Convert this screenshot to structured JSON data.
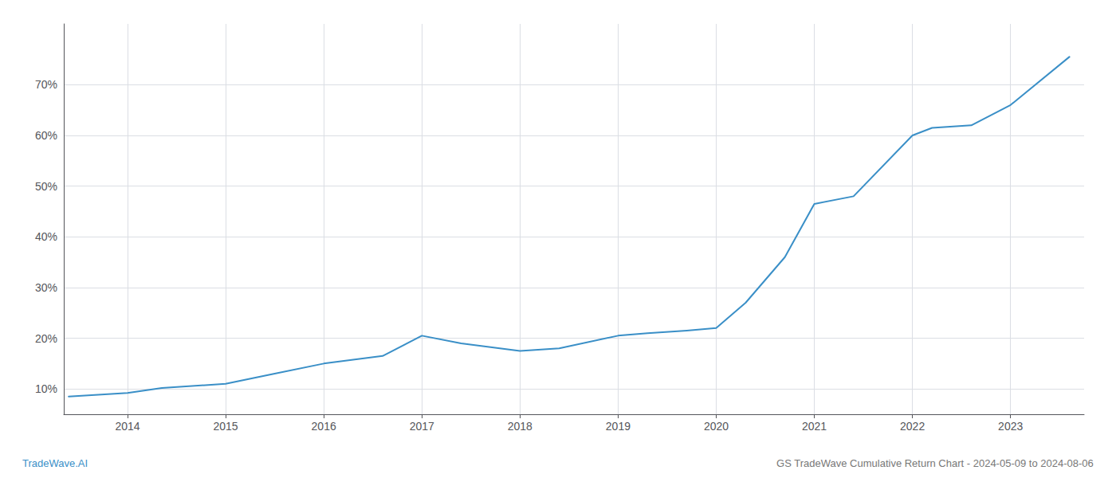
{
  "chart_data": {
    "type": "line",
    "x": [
      2013.4,
      2014.0,
      2014.35,
      2015.0,
      2015.5,
      2016.0,
      2016.6,
      2017.0,
      2017.4,
      2018.0,
      2018.4,
      2019.0,
      2019.3,
      2019.7,
      2020.0,
      2020.3,
      2020.7,
      2021.0,
      2021.4,
      2022.0,
      2022.2,
      2022.6,
      2023.0,
      2023.6
    ],
    "values": [
      8.5,
      9.2,
      10.2,
      11.0,
      13.0,
      15.0,
      16.5,
      20.5,
      19.0,
      17.5,
      18.0,
      20.5,
      21.0,
      21.5,
      22.0,
      27.0,
      36.0,
      46.5,
      48.0,
      60.0,
      61.5,
      62.0,
      66.0,
      75.5
    ],
    "color": "#3a8fc7",
    "xlim": [
      2013.35,
      2023.75
    ],
    "ylim": [
      5,
      82
    ],
    "xticks": [
      2014,
      2015,
      2016,
      2017,
      2018,
      2019,
      2020,
      2021,
      2022,
      2023
    ],
    "yticks": [
      {
        "value": 10,
        "label": "10%"
      },
      {
        "value": 20,
        "label": "20%"
      },
      {
        "value": 30,
        "label": "30%"
      },
      {
        "value": 40,
        "label": "40%"
      },
      {
        "value": 50,
        "label": "50%"
      },
      {
        "value": 60,
        "label": "60%"
      },
      {
        "value": 70,
        "label": "70%"
      }
    ],
    "grid": true,
    "annotations": [
      {
        "text": "TradeWave.AI",
        "color": "#3a8fc7"
      },
      {
        "text": "GS TradeWave Cumulative Return Chart - 2024-05-09 to 2024-08-06",
        "color": "#777777"
      }
    ]
  }
}
